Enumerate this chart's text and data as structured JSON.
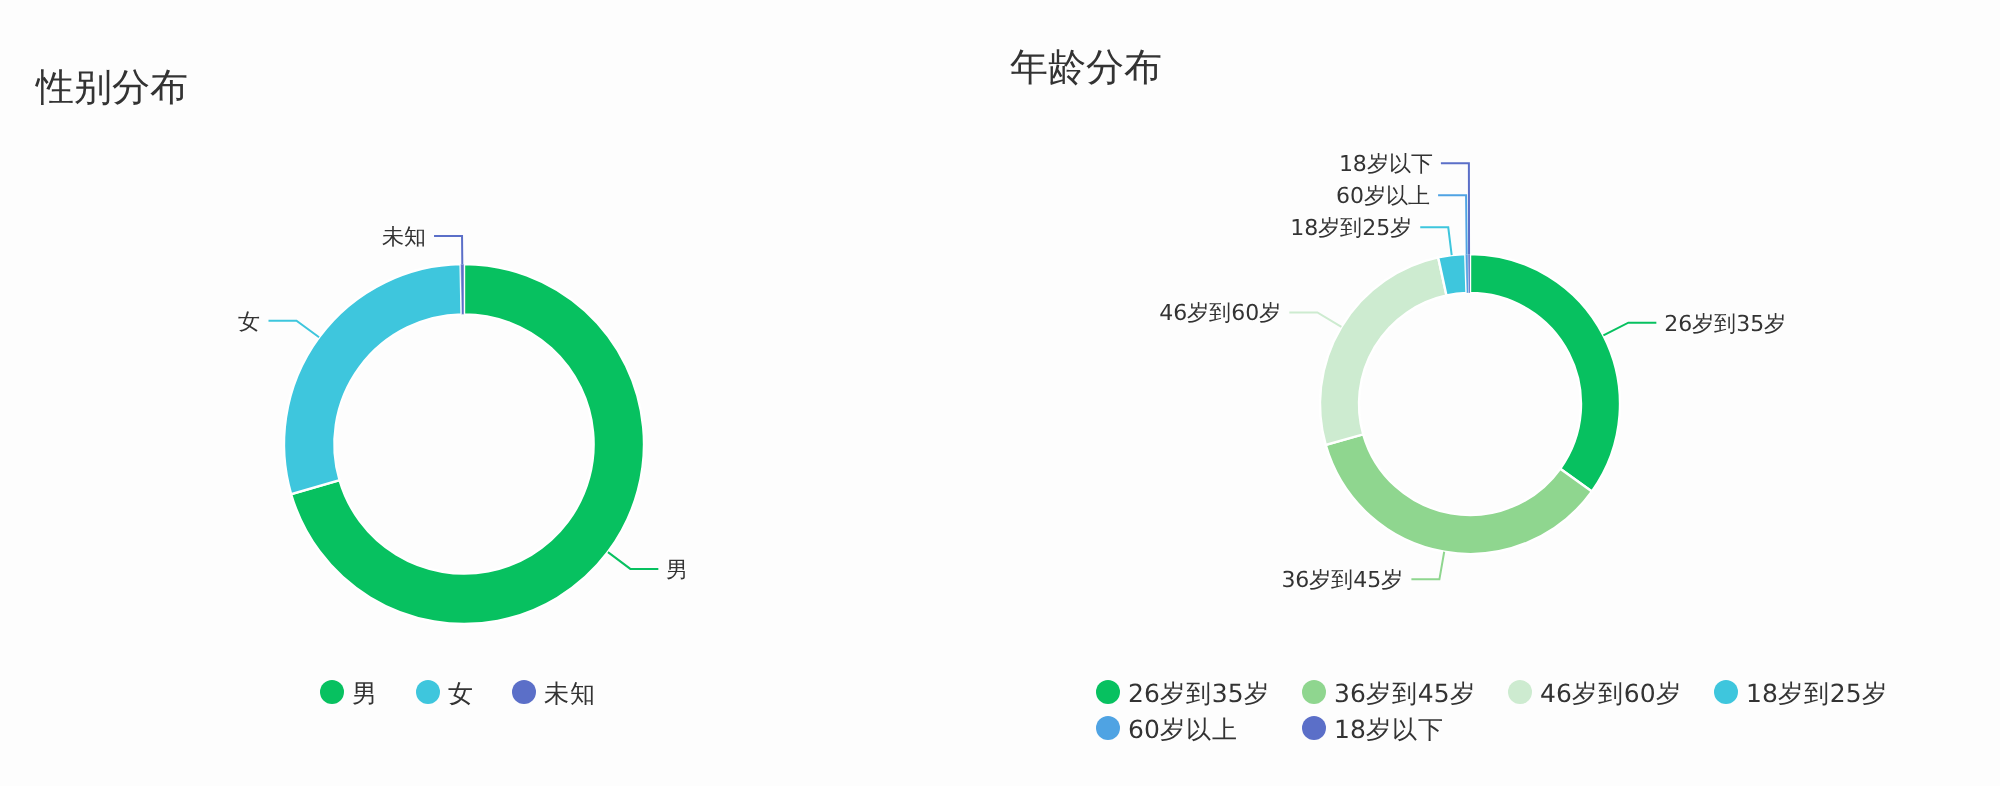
{
  "chart_data": [
    {
      "type": "donut",
      "title": "性别分布",
      "categories": [
        "男",
        "女",
        "未知"
      ],
      "values": [
        70.5,
        29.2,
        0.3
      ],
      "colors": [
        "#07c160",
        "#3ec6dd",
        "#5b6fc8"
      ],
      "legend": "bottom"
    },
    {
      "type": "donut",
      "title": "年龄分布",
      "categories": [
        "26岁到35岁",
        "36岁到45岁",
        "46岁到60岁",
        "18岁到25岁",
        "60岁以上",
        "18岁以下"
      ],
      "values": [
        34.9,
        35.7,
        26.0,
        2.9,
        0.3,
        0.2
      ],
      "colors": [
        "#07c160",
        "#8fd68f",
        "#cdebd0",
        "#3ec6dd",
        "#4fa3e3",
        "#5b6fc8"
      ],
      "legend": "bottom"
    }
  ]
}
